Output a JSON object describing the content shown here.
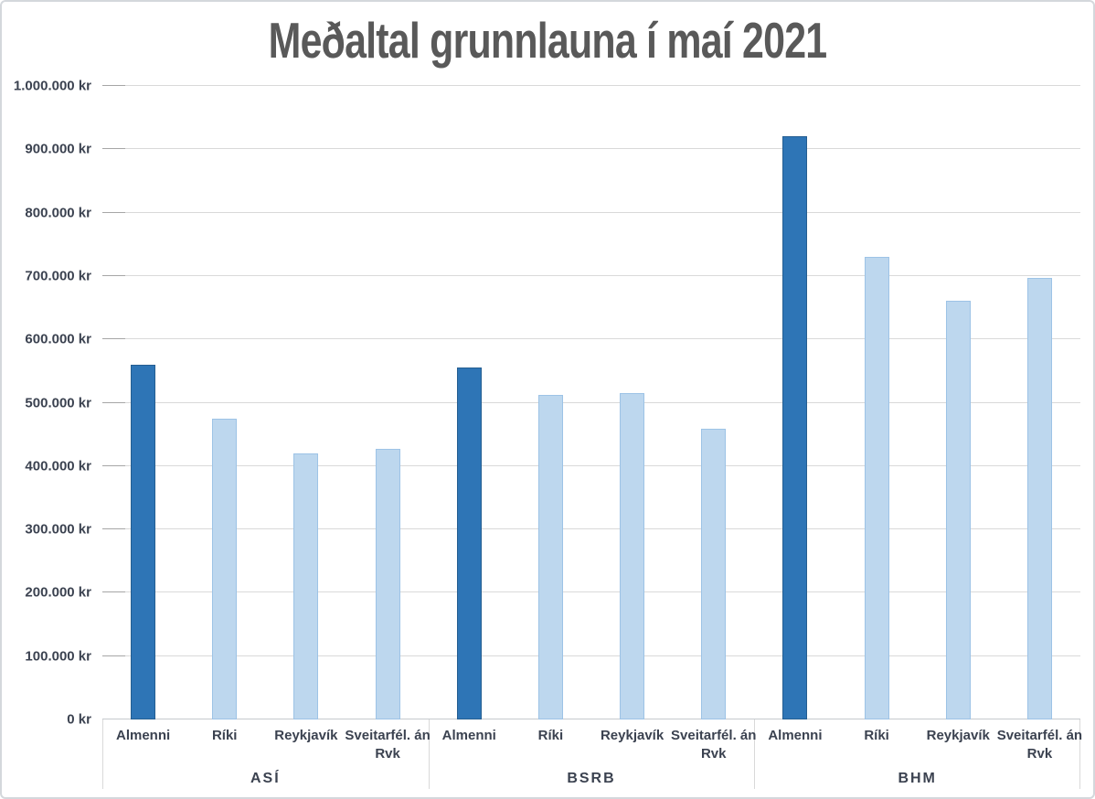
{
  "chart_data": {
    "type": "bar",
    "title": "Meðaltal grunnlauna í maí 2021",
    "currency": "kr",
    "grid": true,
    "legend": false,
    "y_axis": {
      "min": 0,
      "max": 1000000,
      "step": 100000,
      "tick_labels": [
        "0 kr",
        "100.000 kr",
        "200.000 kr",
        "300.000 kr",
        "400.000 kr",
        "500.000 kr",
        "600.000 kr",
        "700.000 kr",
        "800.000 kr",
        "900.000 kr",
        "1.000.000 kr"
      ]
    },
    "categories_per_group": [
      "Almenni",
      "Ríki",
      "Reykjavík",
      "Sveitarfél. án Rvk"
    ],
    "groups": [
      {
        "label": "ASÍ",
        "bars": [
          {
            "label": "Almenni",
            "value": 560000,
            "emphasis": true
          },
          {
            "label": "Ríki",
            "value": 475000,
            "emphasis": false
          },
          {
            "label": "Reykjavík",
            "value": 420000,
            "emphasis": false
          },
          {
            "label": "Sveitarfél. án Rvk",
            "value": 427000,
            "emphasis": false
          }
        ]
      },
      {
        "label": "BSRB",
        "bars": [
          {
            "label": "Almenni",
            "value": 556000,
            "emphasis": true
          },
          {
            "label": "Ríki",
            "value": 513000,
            "emphasis": false
          },
          {
            "label": "Reykjavík",
            "value": 515000,
            "emphasis": false
          },
          {
            "label": "Sveitarfél. án Rvk",
            "value": 459000,
            "emphasis": false
          }
        ]
      },
      {
        "label": "BHM",
        "bars": [
          {
            "label": "Almenni",
            "value": 920000,
            "emphasis": true
          },
          {
            "label": "Ríki",
            "value": 730000,
            "emphasis": false
          },
          {
            "label": "Reykjavík",
            "value": 661000,
            "emphasis": false
          },
          {
            "label": "Sveitarfél. án Rvk",
            "value": 697000,
            "emphasis": false
          }
        ]
      }
    ],
    "colors": {
      "bar_primary": "#2e75b6",
      "bar_primary_border": "#255e91",
      "bar_secondary": "#bdd7ee",
      "bar_secondary_border": "#9dc3e6",
      "gridline": "#d9d9d9",
      "tick": "#a6a6a6",
      "axis_line": "#c5c9cd",
      "label_text": "#3b4250",
      "title_text": "#595959"
    }
  }
}
